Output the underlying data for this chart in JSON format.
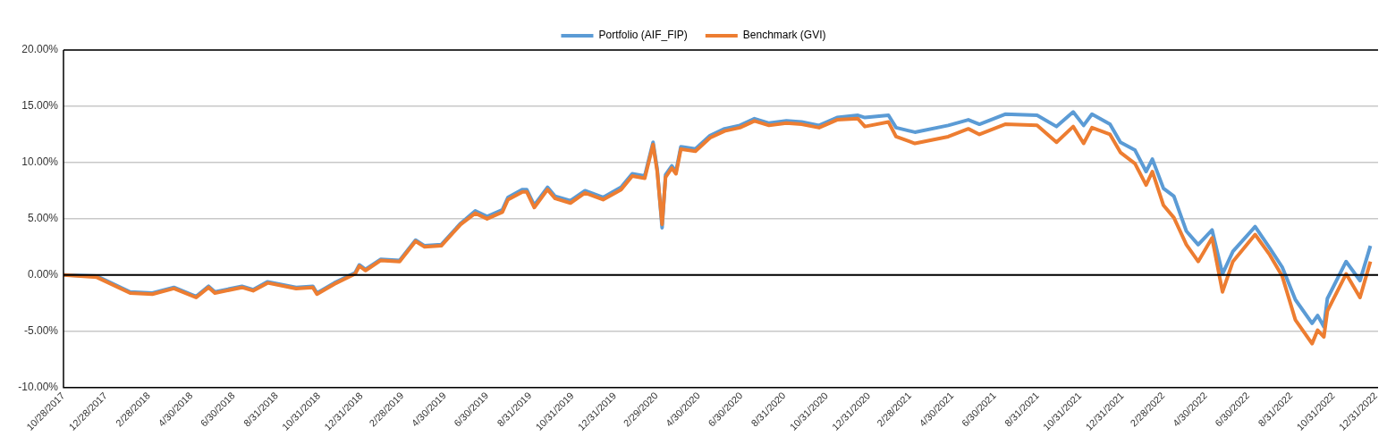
{
  "chart_data": {
    "type": "line",
    "x": [
      "2017-10-28",
      "2017-12-15",
      "2018-02-01",
      "2018-03-05",
      "2018-04-05",
      "2018-05-07",
      "2018-05-25",
      "2018-06-03",
      "2018-07-12",
      "2018-07-28",
      "2018-08-18",
      "2018-09-28",
      "2018-10-22",
      "2018-10-28",
      "2018-11-22",
      "2018-12-22",
      "2018-12-28",
      "2019-01-06",
      "2019-01-28",
      "2019-02-24",
      "2019-03-19",
      "2019-04-01",
      "2019-04-25",
      "2019-05-23",
      "2019-06-13",
      "2019-06-30",
      "2019-07-22",
      "2019-07-30",
      "2019-08-20",
      "2019-08-26",
      "2019-09-06",
      "2019-09-25",
      "2019-10-06",
      "2019-10-28",
      "2019-11-18",
      "2019-12-14",
      "2020-01-09",
      "2020-01-25",
      "2020-02-12",
      "2020-02-24",
      "2020-03-01",
      "2020-03-08",
      "2020-03-13",
      "2020-03-22",
      "2020-03-28",
      "2020-04-04",
      "2020-04-25",
      "2020-05-16",
      "2020-06-06",
      "2020-06-28",
      "2020-07-19",
      "2020-08-09",
      "2020-09-03",
      "2020-09-25",
      "2020-10-20",
      "2020-11-15",
      "2020-12-15",
      "2020-12-25",
      "2021-01-28",
      "2021-02-08",
      "2021-03-07",
      "2021-04-24",
      "2021-05-23",
      "2021-06-08",
      "2021-07-15",
      "2021-08-30",
      "2021-09-27",
      "2021-10-21",
      "2021-11-05",
      "2021-11-17",
      "2021-12-13",
      "2021-12-28",
      "2022-01-18",
      "2022-02-03",
      "2022-02-12",
      "2022-02-28",
      "2022-03-15",
      "2022-04-02",
      "2022-04-19",
      "2022-05-09",
      "2022-05-24",
      "2022-06-08",
      "2022-07-10",
      "2022-07-31",
      "2022-08-18",
      "2022-09-06",
      "2022-09-30",
      "2022-10-08",
      "2022-10-17",
      "2022-10-22",
      "2022-11-18",
      "2022-12-08",
      "2022-12-23"
    ],
    "series": [
      {
        "name": "Portfolio (AIF_FIP)",
        "color": "#5b9bd5",
        "values": [
          0,
          -0.1,
          -1.5,
          -1.6,
          -1.1,
          -1.9,
          -1.0,
          -1.5,
          -1.0,
          -1.3,
          -0.6,
          -1.1,
          -1.0,
          -1.6,
          -0.7,
          0.2,
          0.9,
          0.5,
          1.4,
          1.3,
          3.1,
          2.6,
          2.7,
          4.6,
          5.7,
          5.2,
          5.8,
          6.9,
          7.6,
          7.6,
          6.2,
          7.8,
          7.0,
          6.6,
          7.5,
          6.9,
          7.8,
          9.0,
          8.8,
          11.8,
          9.4,
          4.2,
          8.9,
          9.7,
          9.2,
          11.4,
          11.2,
          12.4,
          13.0,
          13.3,
          13.9,
          13.5,
          13.7,
          13.6,
          13.3,
          14.0,
          14.2,
          14.0,
          14.2,
          13.1,
          12.7,
          13.3,
          13.8,
          13.4,
          14.3,
          14.2,
          13.2,
          14.5,
          13.3,
          14.3,
          13.4,
          11.8,
          11.1,
          9.2,
          10.3,
          7.7,
          7.0,
          3.9,
          2.7,
          4.0,
          0.1,
          2.1,
          4.3,
          2.4,
          0.7,
          -2.2,
          -4.3,
          -3.6,
          -4.6,
          -2.1,
          1.2,
          -0.5,
          2.6
        ]
      },
      {
        "name": "Benchmark (GVI)",
        "color": "#ed7d31",
        "values": [
          0,
          -0.2,
          -1.6,
          -1.7,
          -1.2,
          -2.0,
          -1.1,
          -1.6,
          -1.1,
          -1.4,
          -0.7,
          -1.2,
          -1.1,
          -1.7,
          -0.8,
          0.1,
          0.8,
          0.4,
          1.3,
          1.2,
          3.0,
          2.5,
          2.6,
          4.5,
          5.5,
          5.0,
          5.6,
          6.7,
          7.4,
          7.4,
          6.0,
          7.6,
          6.8,
          6.4,
          7.3,
          6.7,
          7.6,
          8.8,
          8.6,
          11.6,
          9.2,
          4.5,
          8.7,
          9.5,
          9.0,
          11.2,
          11.0,
          12.2,
          12.8,
          13.1,
          13.7,
          13.3,
          13.5,
          13.4,
          13.1,
          13.8,
          13.9,
          13.2,
          13.6,
          12.3,
          11.7,
          12.3,
          13.0,
          12.5,
          13.4,
          13.3,
          11.8,
          13.2,
          11.7,
          13.1,
          12.5,
          10.9,
          9.9,
          8.0,
          9.2,
          6.2,
          5.1,
          2.7,
          1.2,
          3.3,
          -1.5,
          1.2,
          3.6,
          1.8,
          -0.1,
          -4.0,
          -6.1,
          -4.9,
          -5.5,
          -3.2,
          0.1,
          -2.0,
          1.2
        ]
      }
    ],
    "xlim": [
      "2017-10-28",
      "2023-01-03"
    ],
    "xticks": [
      {
        "value": "2017-10-28",
        "label": "10/28/2017"
      },
      {
        "value": "2017-12-28",
        "label": "12/28/2017"
      },
      {
        "value": "2018-02-28",
        "label": "2/28/2018"
      },
      {
        "value": "2018-04-30",
        "label": "4/30/2018"
      },
      {
        "value": "2018-06-30",
        "label": "6/30/2018"
      },
      {
        "value": "2018-08-31",
        "label": "8/31/2018"
      },
      {
        "value": "2018-10-31",
        "label": "10/31/2018"
      },
      {
        "value": "2018-12-31",
        "label": "12/31/2018"
      },
      {
        "value": "2019-02-28",
        "label": "2/28/2019"
      },
      {
        "value": "2019-04-30",
        "label": "4/30/2019"
      },
      {
        "value": "2019-06-30",
        "label": "6/30/2019"
      },
      {
        "value": "2019-08-31",
        "label": "8/31/2019"
      },
      {
        "value": "2019-10-31",
        "label": "10/31/2019"
      },
      {
        "value": "2019-12-31",
        "label": "12/31/2019"
      },
      {
        "value": "2020-02-29",
        "label": "2/29/2020"
      },
      {
        "value": "2020-04-30",
        "label": "4/30/2020"
      },
      {
        "value": "2020-06-30",
        "label": "6/30/2020"
      },
      {
        "value": "2020-08-31",
        "label": "8/31/2020"
      },
      {
        "value": "2020-10-31",
        "label": "10/31/2020"
      },
      {
        "value": "2020-12-31",
        "label": "12/31/2020"
      },
      {
        "value": "2021-02-28",
        "label": "2/28/2021"
      },
      {
        "value": "2021-04-30",
        "label": "4/30/2021"
      },
      {
        "value": "2021-06-30",
        "label": "6/30/2021"
      },
      {
        "value": "2021-08-31",
        "label": "8/31/2021"
      },
      {
        "value": "2021-10-31",
        "label": "10/31/2021"
      },
      {
        "value": "2021-12-31",
        "label": "12/31/2021"
      },
      {
        "value": "2022-02-28",
        "label": "2/28/2022"
      },
      {
        "value": "2022-04-30",
        "label": "4/30/2022"
      },
      {
        "value": "2022-06-30",
        "label": "6/30/2022"
      },
      {
        "value": "2022-08-31",
        "label": "8/31/2022"
      },
      {
        "value": "2022-10-31",
        "label": "10/31/2022"
      },
      {
        "value": "2022-12-31",
        "label": "12/31/2022"
      }
    ],
    "ylim": [
      -10,
      20
    ],
    "yticks": [
      {
        "value": -10,
        "label": "-10.00%"
      },
      {
        "value": -5,
        "label": "-5.00%"
      },
      {
        "value": 0,
        "label": "0.00%"
      },
      {
        "value": 5,
        "label": "5.00%"
      },
      {
        "value": 10,
        "label": "10.00%"
      },
      {
        "value": 15,
        "label": "15.00%"
      },
      {
        "value": 20,
        "label": "20.00%"
      }
    ],
    "ref_lines": [
      {
        "axis": "y",
        "value": 0,
        "color": "#000000"
      }
    ],
    "grid": "y",
    "legend": "top",
    "marker": "none",
    "line_style": "solid"
  }
}
